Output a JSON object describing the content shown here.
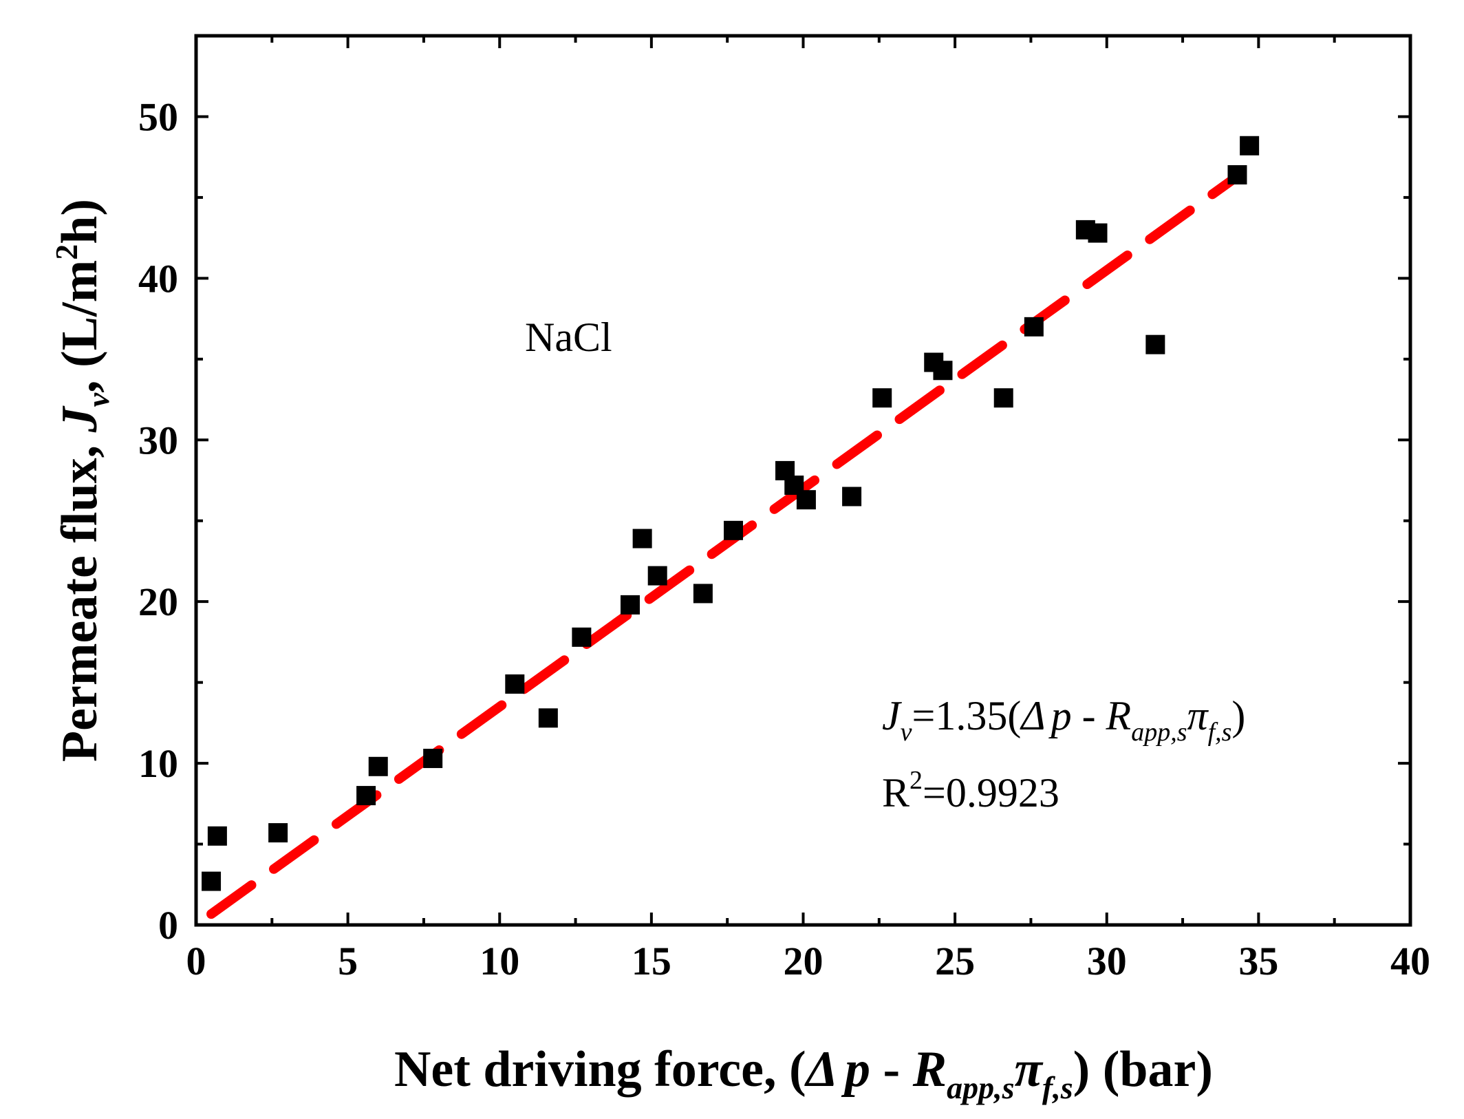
{
  "chart_data": {
    "type": "scatter",
    "xlabel": {
      "prefix": "Net driving force, (",
      "delta": "Δ",
      "p": "p",
      "minus": " - ",
      "R": "R",
      "R_sub": "app,s",
      "pi": "π",
      "pi_sub": "f,s",
      "suffix": ") (bar)"
    },
    "ylabel": {
      "prefix": "Permeate flux, ",
      "J": "J",
      "J_sub": "v",
      "units_pre": ", (L/m",
      "units_sup": "2",
      "units_post": "h)"
    },
    "xlim": [
      0,
      40
    ],
    "ylim": [
      0,
      55
    ],
    "xticks": [
      0,
      5,
      10,
      15,
      20,
      25,
      30,
      35,
      40
    ],
    "yticks": [
      0,
      10,
      20,
      30,
      40,
      50
    ],
    "series": [
      {
        "name": "NaCl",
        "marker": "square",
        "color": "#000000",
        "x": [
          0.5,
          0.7,
          2.7,
          5.6,
          6.0,
          7.8,
          10.5,
          11.6,
          12.7,
          14.3,
          14.7,
          15.2,
          16.7,
          17.7,
          19.4,
          19.7,
          20.1,
          21.6,
          22.6,
          24.3,
          24.6,
          26.6,
          27.6,
          29.3,
          29.7,
          31.6,
          34.3,
          34.7
        ],
        "y": [
          2.7,
          5.5,
          5.7,
          8.0,
          9.8,
          10.3,
          14.9,
          12.8,
          17.8,
          19.8,
          23.9,
          21.6,
          20.5,
          24.4,
          28.1,
          27.2,
          26.3,
          26.5,
          32.6,
          34.8,
          34.3,
          32.6,
          37.0,
          43.0,
          42.8,
          35.9,
          46.4,
          48.2
        ]
      }
    ],
    "fit": {
      "slope": 1.35,
      "x_range": [
        0.5,
        34.2
      ],
      "color": "#ff0000",
      "style": "dashed"
    },
    "annotations": {
      "label": "NaCl",
      "equation": {
        "J": "J",
        "J_sub": "v",
        "eq": "=1.35(",
        "delta": "Δ",
        "p": "p",
        "minus": " - ",
        "R": "R",
        "R_sub": "app,s",
        "pi": "π",
        "pi_sub": "f,s",
        "close": ")"
      },
      "r2": {
        "R": "R",
        "sup": "2",
        "value": "=0.9923"
      }
    }
  }
}
